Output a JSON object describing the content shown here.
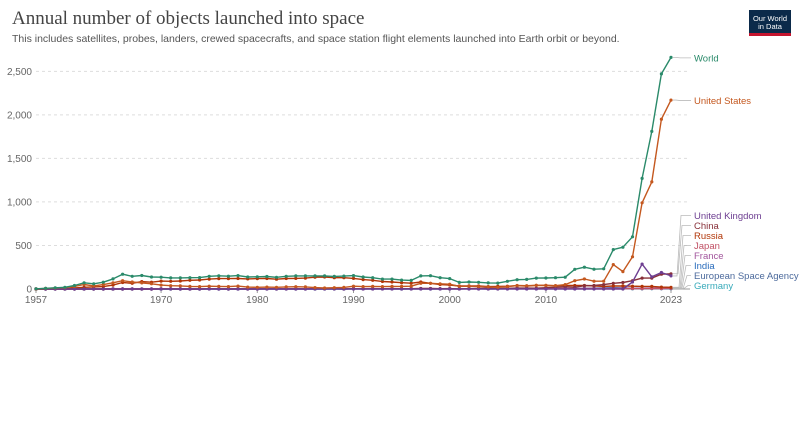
{
  "header": {
    "title": "Annual number of objects launched into space",
    "subtitle": "This includes satellites, probes, landers, crewed spacecrafts, and space station flight elements launched into Earth orbit or beyond.",
    "logo_line1": "Our World",
    "logo_line2": "in Data"
  },
  "chart_data": {
    "type": "line",
    "title": "Annual number of objects launched into space",
    "x": [
      1957,
      1958,
      1959,
      1960,
      1961,
      1962,
      1963,
      1964,
      1965,
      1966,
      1967,
      1968,
      1969,
      1970,
      1971,
      1972,
      1973,
      1974,
      1975,
      1976,
      1977,
      1978,
      1979,
      1980,
      1981,
      1982,
      1983,
      1984,
      1985,
      1986,
      1987,
      1988,
      1989,
      1990,
      1991,
      1992,
      1993,
      1994,
      1995,
      1996,
      1997,
      1998,
      1999,
      2000,
      2001,
      2002,
      2003,
      2004,
      2005,
      2006,
      2007,
      2008,
      2009,
      2010,
      2011,
      2012,
      2013,
      2014,
      2015,
      2016,
      2017,
      2018,
      2019,
      2020,
      2021,
      2022,
      2023
    ],
    "xticks": [
      "1957",
      "1970",
      "1980",
      "1990",
      "2000",
      "2010",
      "2023"
    ],
    "yticks": [
      "0",
      "500",
      "1,000",
      "1,500",
      "2,000",
      "2,500"
    ],
    "ylim": [
      0,
      2700
    ],
    "xlim": [
      1957,
      2023
    ],
    "grid": "horizontal",
    "series": [
      {
        "name": "World",
        "color": "#2a8a6a",
        "values": [
          2,
          8,
          14,
          19,
          40,
          71,
          60,
          78,
          116,
          170,
          146,
          155,
          138,
          136,
          127,
          128,
          130,
          131,
          146,
          152,
          147,
          154,
          138,
          140,
          143,
          134,
          146,
          150,
          150,
          151,
          150,
          145,
          148,
          154,
          138,
          130,
          114,
          114,
          102,
          99,
          150,
          153,
          130,
          120,
          76,
          80,
          77,
          70,
          68,
          89,
          107,
          110,
          125,
          126,
          130,
          136,
          226,
          250,
          227,
          232,
          453,
          480,
          600,
          1270,
          1810,
          2470,
          2660
        ]
      },
      {
        "name": "United States",
        "color": "#c4581f",
        "values": [
          0,
          7,
          11,
          16,
          29,
          52,
          36,
          50,
          71,
          95,
          80,
          70,
          60,
          45,
          38,
          36,
          30,
          28,
          32,
          30,
          28,
          33,
          22,
          20,
          22,
          20,
          24,
          26,
          24,
          16,
          12,
          15,
          18,
          32,
          28,
          30,
          28,
          30,
          30,
          32,
          65,
          66,
          60,
          55,
          30,
          32,
          28,
          24,
          20,
          28,
          40,
          38,
          42,
          40,
          38,
          50,
          95,
          115,
          90,
          90,
          280,
          200,
          370,
          990,
          1230,
          1950,
          2170
        ]
      },
      {
        "name": "United Kingdom",
        "color": "#6d3e91",
        "values": [
          0,
          0,
          0,
          0,
          0,
          0,
          0,
          0,
          0,
          0,
          0,
          0,
          0,
          0,
          1,
          0,
          0,
          0,
          0,
          0,
          0,
          0,
          0,
          0,
          0,
          0,
          0,
          0,
          0,
          0,
          0,
          0,
          0,
          0,
          0,
          0,
          0,
          0,
          0,
          0,
          0,
          0,
          0,
          0,
          0,
          0,
          0,
          0,
          0,
          0,
          0,
          0,
          0,
          0,
          0,
          0,
          0,
          0,
          0,
          0,
          0,
          0,
          80,
          286,
          140,
          190,
          150
        ]
      },
      {
        "name": "China",
        "color": "#883039",
        "values": [
          0,
          0,
          0,
          0,
          0,
          0,
          0,
          0,
          0,
          0,
          0,
          0,
          0,
          1,
          1,
          0,
          0,
          0,
          3,
          2,
          0,
          2,
          0,
          0,
          2,
          1,
          1,
          2,
          1,
          2,
          2,
          4,
          0,
          5,
          1,
          3,
          2,
          5,
          2,
          3,
          6,
          6,
          4,
          5,
          1,
          5,
          6,
          9,
          6,
          8,
          10,
          10,
          9,
          15,
          21,
          26,
          19,
          38,
          40,
          50,
          65,
          75,
          95,
          125,
          125,
          170,
          175
        ]
      },
      {
        "name": "Russia",
        "color": "#b13507",
        "values": [
          2,
          1,
          3,
          3,
          11,
          19,
          24,
          28,
          45,
          75,
          66,
          85,
          78,
          91,
          88,
          92,
          100,
          103,
          114,
          120,
          119,
          121,
          116,
          120,
          121,
          113,
          121,
          122,
          125,
          135,
          138,
          130,
          130,
          122,
          108,
          100,
          86,
          80,
          72,
          67,
          80,
          65,
          52,
          46,
          35,
          36,
          34,
          28,
          30,
          32,
          38,
          35,
          41,
          42,
          38,
          40,
          40,
          40,
          36,
          30,
          35,
          36,
          32,
          30,
          30,
          22,
          20
        ]
      },
      {
        "name": "Japan",
        "color": "#c15065",
        "values": [
          0,
          0,
          0,
          0,
          0,
          0,
          0,
          0,
          0,
          0,
          0,
          0,
          0,
          1,
          2,
          1,
          0,
          1,
          2,
          2,
          2,
          4,
          3,
          3,
          4,
          4,
          3,
          4,
          3,
          4,
          4,
          3,
          4,
          4,
          3,
          3,
          3,
          3,
          3,
          4,
          4,
          3,
          2,
          1,
          1,
          3,
          3,
          1,
          2,
          5,
          5,
          6,
          3,
          8,
          6,
          6,
          3,
          5,
          5,
          5,
          5,
          6,
          6,
          5,
          7,
          6,
          8
        ]
      },
      {
        "name": "France",
        "color": "#a2559c",
        "values": [
          0,
          0,
          0,
          0,
          0,
          0,
          0,
          0,
          1,
          1,
          2,
          0,
          0,
          2,
          2,
          1,
          0,
          1,
          2,
          0,
          0,
          0,
          0,
          0,
          0,
          0,
          0,
          0,
          0,
          2,
          1,
          2,
          2,
          3,
          2,
          2,
          2,
          3,
          3,
          3,
          4,
          5,
          4,
          3,
          4,
          4,
          3,
          3,
          4,
          4,
          5,
          4,
          4,
          4,
          5,
          5,
          4,
          6,
          7,
          6,
          7,
          8,
          7,
          8,
          10,
          10,
          12
        ]
      },
      {
        "name": "India",
        "color": "#286bbb",
        "values": [
          0,
          0,
          0,
          0,
          0,
          0,
          0,
          0,
          0,
          0,
          0,
          0,
          0,
          0,
          0,
          0,
          0,
          0,
          1,
          0,
          0,
          0,
          1,
          1,
          2,
          1,
          2,
          0,
          0,
          0,
          1,
          2,
          0,
          1,
          1,
          1,
          1,
          1,
          0,
          1,
          1,
          0,
          1,
          1,
          1,
          2,
          2,
          1,
          2,
          2,
          3,
          3,
          4,
          5,
          6,
          5,
          5,
          7,
          9,
          12,
          15,
          12,
          8,
          5,
          10,
          14,
          12
        ]
      },
      {
        "name": "European Space Agency",
        "color": "#4c6a9c",
        "values": [
          0,
          0,
          0,
          0,
          0,
          0,
          0,
          0,
          0,
          0,
          0,
          0,
          0,
          0,
          0,
          0,
          0,
          0,
          1,
          0,
          1,
          2,
          1,
          1,
          2,
          2,
          2,
          2,
          2,
          2,
          2,
          3,
          3,
          2,
          2,
          2,
          2,
          2,
          2,
          3,
          4,
          4,
          3,
          3,
          3,
          2,
          3,
          2,
          2,
          3,
          3,
          3,
          3,
          3,
          2,
          3,
          3,
          4,
          4,
          4,
          4,
          3,
          3,
          3,
          5,
          2,
          3
        ]
      },
      {
        "name": "Germany",
        "color": "#38aaba",
        "values": [
          0,
          0,
          0,
          0,
          0,
          0,
          0,
          0,
          0,
          0,
          0,
          0,
          0,
          0,
          0,
          0,
          0,
          0,
          1,
          0,
          0,
          0,
          0,
          0,
          0,
          0,
          0,
          0,
          1,
          0,
          0,
          0,
          0,
          2,
          1,
          1,
          1,
          1,
          1,
          1,
          2,
          2,
          1,
          2,
          2,
          2,
          2,
          1,
          1,
          2,
          2,
          2,
          2,
          2,
          2,
          3,
          3,
          3,
          3,
          3,
          4,
          4,
          3,
          4,
          5,
          6,
          7
        ]
      }
    ]
  }
}
